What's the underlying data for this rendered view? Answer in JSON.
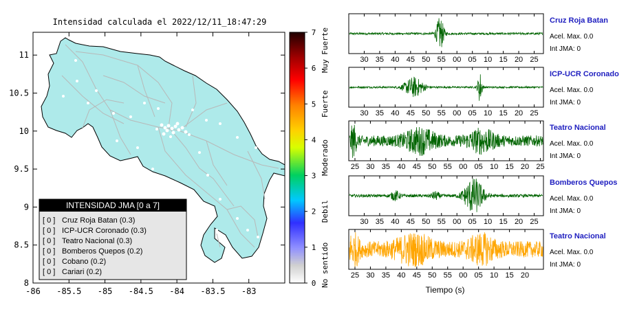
{
  "chart_data": [
    {
      "type": "map",
      "title": "Intensidad calculada el 2022/12/11_18:47:29",
      "xlim": [
        -86,
        -82.5
      ],
      "ylim": [
        8,
        11.3
      ],
      "x_ticks": [
        "-86",
        "-85.5",
        "-85",
        "-84.5",
        "-84",
        "-83.5",
        "-83"
      ],
      "y_ticks": [
        "8",
        "8.5",
        "9",
        "9.5",
        "10",
        "10.5",
        "11"
      ],
      "fill_color": "#aeeaea",
      "colorbar": {
        "range": [
          0,
          7
        ],
        "ticks": [
          "0",
          "1",
          "2",
          "3",
          "4",
          "5",
          "6",
          "7"
        ],
        "labels": [
          "No sentido",
          "Debil",
          "Moderado",
          "Fuerte",
          "Muy Fuerte"
        ]
      },
      "legend": {
        "title": "INTENSIDAD JMA [0 a 7]",
        "items": [
          {
            "level": "[ 0 ]",
            "station": "Cruz Roja Batan (0.3)"
          },
          {
            "level": "[ 0 ]",
            "station": "ICP-UCR Coronado (0.3)"
          },
          {
            "level": "[ 0 ]",
            "station": "Teatro Nacional (0.3)"
          },
          {
            "level": "[ 0 ]",
            "station": "Bomberos Quepos (0.2)"
          },
          {
            "level": "[ 0 ]",
            "station": "Cobano (0.2)"
          },
          {
            "level": "[ 0 ]",
            "station": "Cariari (0.2)"
          }
        ]
      }
    },
    {
      "type": "waveform",
      "xlabel": "Tiempo (s)",
      "traces": [
        {
          "station": "Cruz Roja Batan",
          "accel": "Acel. Max. 0.0",
          "int": "Int JMA: 0",
          "color": "#006400",
          "ticks": [
            "30",
            "35",
            "40",
            "45",
            "50",
            "55",
            "00",
            "05",
            "10",
            "15",
            "20",
            "25"
          ],
          "bursts": [
            [
              54.5,
              0.9,
              0.9
            ]
          ],
          "noise": 0.06
        },
        {
          "station": "ICP-UCR Coronado",
          "accel": "Acel. Max. 0.0",
          "int": "Int JMA: 0",
          "color": "#006400",
          "ticks": [
            "30",
            "35",
            "40",
            "45",
            "50",
            "55",
            "00",
            "05",
            "10",
            "15",
            "20",
            "25"
          ],
          "bursts": [
            [
              46,
              2.2,
              0.55
            ],
            [
              67.5,
              0.5,
              0.85
            ]
          ],
          "noise": 0.05
        },
        {
          "station": "Teatro Nacional",
          "accel": "Acel. Max. 0.0",
          "int": "Int JMA: 0",
          "color": "#006400",
          "ticks": [
            "25",
            "30",
            "35",
            "40",
            "45",
            "50",
            "55",
            "00",
            "05",
            "10",
            "15",
            "20",
            "25"
          ],
          "bursts": [
            [
              24.3,
              0.6,
              0.9
            ],
            [
              46,
              3.5,
              0.55
            ],
            [
              66,
              3,
              0.5
            ]
          ],
          "noise": 0.3
        },
        {
          "station": "Bomberos Quepos",
          "accel": "Acel. Max. 0.0",
          "int": "Int JMA: 0",
          "color": "#006400",
          "ticks": [
            "30",
            "35",
            "40",
            "45",
            "50",
            "55",
            "00",
            "05",
            "10",
            "15",
            "20",
            "25"
          ],
          "bursts": [
            [
              65.5,
              2.2,
              1.0
            ],
            [
              40,
              1,
              0.25
            ],
            [
              53,
              1,
              0.2
            ]
          ],
          "noise": 0.08
        },
        {
          "station": "Teatro Nacional",
          "accel": "Acel. Max. 0.0",
          "int": "Int JMA: 0",
          "color": "#ffa500",
          "ticks": [
            "25",
            "30",
            "35",
            "40",
            "45",
            "50",
            "55",
            "00",
            "05",
            "10",
            "15",
            "20"
          ],
          "bursts": [
            [
              24.5,
              1,
              0.9
            ],
            [
              44,
              4,
              0.6
            ],
            [
              66,
              3,
              0.55
            ]
          ],
          "noise": 0.45
        }
      ]
    }
  ]
}
